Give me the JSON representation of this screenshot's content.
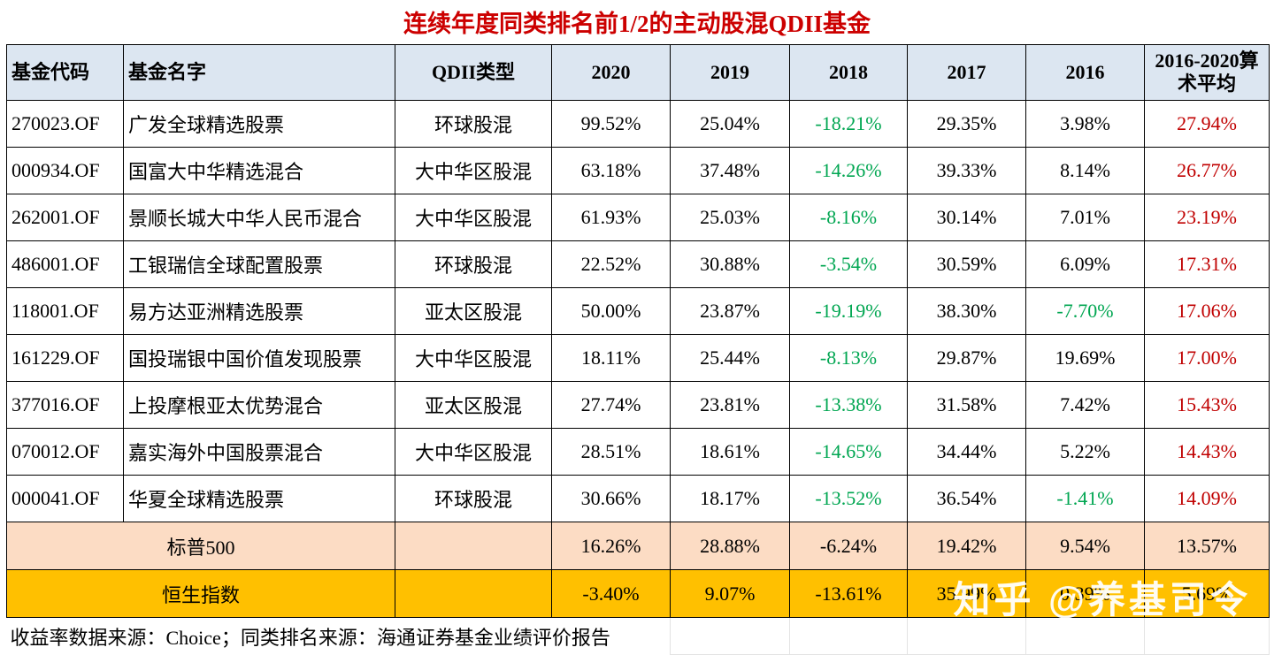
{
  "title": "连续年度同类排名前1/2的主动股混QDII基金",
  "watermark": "知乎 @养基司令",
  "footnote": "收益率数据来源：Choice；同类排名来源：海通证券基金业绩评价报告",
  "colors": {
    "title_red": "#cc0000",
    "average_red": "#c00000",
    "negative_green": "#00a651",
    "header_blue": "#dce6f1",
    "sp500_bg": "#fcdcc4",
    "hsi_bg": "#ffc000"
  },
  "chart_data": {
    "type": "table",
    "title": "连续年度同类排名前1/2的主动股混QDII基金",
    "columns": [
      "基金代码",
      "基金名字",
      "QDII类型",
      "2020",
      "2019",
      "2018",
      "2017",
      "2016",
      "2016-2020算术平均"
    ],
    "funds": [
      {
        "code": "270023.OF",
        "name": "广发全球精选股票",
        "qdii_type": "环球股混",
        "returns": [
          "99.52%",
          "25.04%",
          "-18.21%",
          "29.35%",
          "3.98%",
          "27.94%"
        ]
      },
      {
        "code": "000934.OF",
        "name": "国富大中华精选混合",
        "qdii_type": "大中华区股混",
        "returns": [
          "63.18%",
          "37.48%",
          "-14.26%",
          "39.33%",
          "8.14%",
          "26.77%"
        ]
      },
      {
        "code": "262001.OF",
        "name": "景顺长城大中华人民币混合",
        "qdii_type": "大中华区股混",
        "returns": [
          "61.93%",
          "25.03%",
          "-8.16%",
          "30.14%",
          "7.01%",
          "23.19%"
        ]
      },
      {
        "code": "486001.OF",
        "name": "工银瑞信全球配置股票",
        "qdii_type": "环球股混",
        "returns": [
          "22.52%",
          "30.88%",
          "-3.54%",
          "30.59%",
          "6.09%",
          "17.31%"
        ]
      },
      {
        "code": "118001.OF",
        "name": "易方达亚洲精选股票",
        "qdii_type": "亚太区股混",
        "returns": [
          "50.00%",
          "23.87%",
          "-19.19%",
          "38.30%",
          "-7.70%",
          "17.06%"
        ]
      },
      {
        "code": "161229.OF",
        "name": "国投瑞银中国价值发现股票",
        "qdii_type": "大中华区股混",
        "returns": [
          "18.11%",
          "25.44%",
          "-8.13%",
          "29.87%",
          "19.69%",
          "17.00%"
        ]
      },
      {
        "code": "377016.OF",
        "name": "上投摩根亚太优势混合",
        "qdii_type": "亚太区股混",
        "returns": [
          "27.74%",
          "23.81%",
          "-13.38%",
          "31.58%",
          "7.42%",
          "15.43%"
        ]
      },
      {
        "code": "070012.OF",
        "name": "嘉实海外中国股票混合",
        "qdii_type": "大中华区股混",
        "returns": [
          "28.51%",
          "18.61%",
          "-14.65%",
          "34.44%",
          "5.22%",
          "14.43%"
        ]
      },
      {
        "code": "000041.OF",
        "name": "华夏全球精选股票",
        "qdii_type": "环球股混",
        "returns": [
          "30.66%",
          "18.17%",
          "-13.52%",
          "36.54%",
          "-1.41%",
          "14.09%"
        ]
      }
    ],
    "index_rows": [
      {
        "name": "标普500",
        "returns": [
          "16.26%",
          "28.88%",
          "-6.24%",
          "19.42%",
          "9.54%",
          "13.57%"
        ]
      },
      {
        "name": "恒生指数",
        "returns": [
          "-3.40%",
          "9.07%",
          "-13.61%",
          "35.99%",
          "0.39%",
          "5.69%"
        ]
      }
    ],
    "footnote": "收益率数据来源：Choice；同类排名来源：海通证券基金业绩评价报告"
  }
}
